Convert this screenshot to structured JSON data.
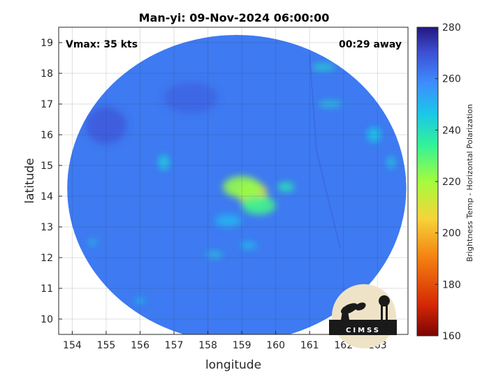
{
  "chart_data": {
    "type": "heatmap",
    "title": "Man-yi: 09-Nov-2024 06:00:00",
    "xlabel": "longitude",
    "ylabel": "latitude",
    "xlim": [
      153.6,
      163.9
    ],
    "ylim": [
      9.5,
      19.5
    ],
    "xticks": [
      "154",
      "155",
      "156",
      "157",
      "158",
      "159",
      "160",
      "161",
      "162",
      "163"
    ],
    "yticks": [
      "10",
      "11",
      "12",
      "13",
      "14",
      "15",
      "16",
      "17",
      "18",
      "19"
    ],
    "grid": true,
    "annotations": {
      "left": "Vmax: 35 kts",
      "right": "00:29 away"
    },
    "colorbar": {
      "label": "Brightness Temp - Horizontal Polarization",
      "range": [
        160,
        280
      ],
      "ticks": [
        "160",
        "180",
        "200",
        "220",
        "240",
        "260",
        "280"
      ],
      "colormap": "parula"
    },
    "swath": {
      "center": [
        158.85,
        14.25
      ],
      "radius_deg": 5.0,
      "background_tb": 262
    },
    "features": [
      {
        "lon": 159.3,
        "lat": 14.1,
        "tb": 212,
        "sx": 0.45,
        "sy": 0.38
      },
      {
        "lon": 159.0,
        "lat": 14.3,
        "tb": 222,
        "sx": 0.55,
        "sy": 0.35
      },
      {
        "lon": 159.5,
        "lat": 13.7,
        "tb": 232,
        "sx": 0.5,
        "sy": 0.3
      },
      {
        "lon": 160.3,
        "lat": 14.3,
        "tb": 238,
        "sx": 0.25,
        "sy": 0.15
      },
      {
        "lon": 158.6,
        "lat": 13.2,
        "tb": 250,
        "sx": 0.4,
        "sy": 0.2
      },
      {
        "lon": 156.7,
        "lat": 15.1,
        "tb": 244,
        "sx": 0.15,
        "sy": 0.25
      },
      {
        "lon": 158.2,
        "lat": 12.1,
        "tb": 243,
        "sx": 0.25,
        "sy": 0.08
      },
      {
        "lon": 159.2,
        "lat": 12.4,
        "tb": 247,
        "sx": 0.25,
        "sy": 0.1
      },
      {
        "lon": 161.4,
        "lat": 18.2,
        "tb": 242,
        "sx": 0.35,
        "sy": 0.1
      },
      {
        "lon": 161.6,
        "lat": 17.0,
        "tb": 242,
        "sx": 0.35,
        "sy": 0.08
      },
      {
        "lon": 162.9,
        "lat": 16.0,
        "tb": 246,
        "sx": 0.2,
        "sy": 0.25
      },
      {
        "lon": 163.4,
        "lat": 15.1,
        "tb": 244,
        "sx": 0.1,
        "sy": 0.2
      },
      {
        "lon": 154.6,
        "lat": 12.5,
        "tb": 244,
        "sx": 0.12,
        "sy": 0.08
      },
      {
        "lon": 156.0,
        "lat": 10.6,
        "tb": 246,
        "sx": 0.15,
        "sy": 0.08
      },
      {
        "lon": 155.0,
        "lat": 16.3,
        "tb": 268,
        "sx": 0.6,
        "sy": 0.6
      },
      {
        "lon": 157.5,
        "lat": 17.2,
        "tb": 266,
        "sx": 0.8,
        "sy": 0.5
      }
    ]
  },
  "logo": {
    "text": "CIMSS"
  }
}
